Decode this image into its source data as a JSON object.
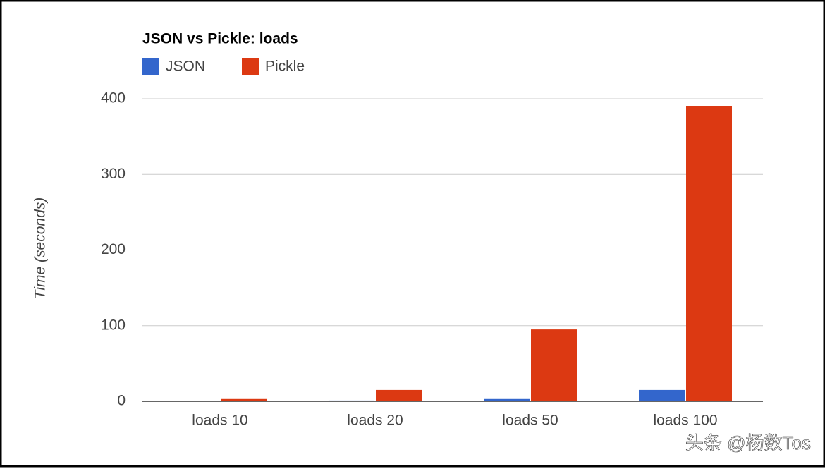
{
  "chart_data": {
    "type": "bar",
    "title": "JSON vs Pickle: loads",
    "y_label": "Time (seconds)",
    "categories": [
      "loads 10",
      "loads 20",
      "loads 50",
      "loads 100"
    ],
    "series": [
      {
        "name": "JSON",
        "color": "#3366cc",
        "values": [
          0.5,
          1,
          3,
          15
        ]
      },
      {
        "name": "Pickle",
        "color": "#dc3912",
        "values": [
          3,
          15,
          95,
          390
        ]
      }
    ],
    "ylim": [
      0,
      400
    ],
    "yticks": [
      0,
      100,
      200,
      300,
      400
    ],
    "grid": true,
    "legend": "top-left"
  },
  "watermark": "头条 @杨数Tos"
}
